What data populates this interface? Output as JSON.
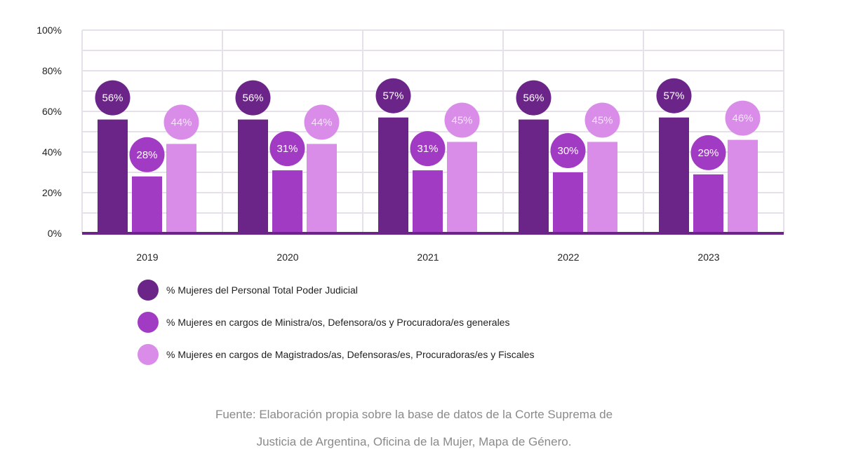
{
  "chart_data": {
    "type": "bar",
    "title": "",
    "xlabel": "",
    "ylabel": "",
    "ylim": [
      0,
      100
    ],
    "yticks": [
      "0%",
      "20%",
      "40%",
      "60%",
      "80%",
      "100%"
    ],
    "grid": true,
    "legend_position": "bottom",
    "categories": [
      "2019",
      "2020",
      "2021",
      "2022",
      "2023"
    ],
    "series": [
      {
        "name": "% Mujeres del Personal Total Poder Judicial",
        "color": "#6b2488",
        "label_color": "#ffffff",
        "values": [
          56,
          56,
          57,
          56,
          57
        ]
      },
      {
        "name": "% Mujeres en cargos de Ministra/os, Defensora/os y Procuradora/es generales",
        "color": "#a23bc3",
        "label_color": "#ffffff",
        "values": [
          28,
          31,
          31,
          30,
          29
        ]
      },
      {
        "name": "% Mujeres en cargos de Magistrados/as, Defensoras/es, Procuradoras/es y Fiscales",
        "color": "#d98de9",
        "label_color": "#f6e6fb",
        "values": [
          44,
          44,
          45,
          45,
          46
        ]
      }
    ]
  },
  "footer": {
    "line1": "Fuente: Elaboración propia sobre la base de datos de la Corte Suprema de",
    "line2": "Justicia de Argentina, Oficina de la Mujer, Mapa de Género."
  }
}
